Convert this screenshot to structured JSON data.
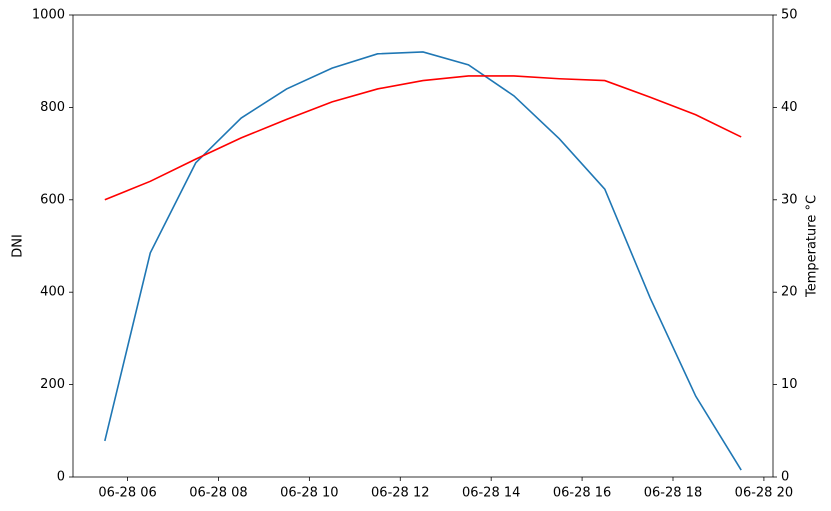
{
  "chart_data": {
    "type": "line",
    "x": [
      5.5,
      6.5,
      7.5,
      8.5,
      9.5,
      10.5,
      11.5,
      12.5,
      13.5,
      14.5,
      15.5,
      16.5,
      17.5,
      18.5,
      19.5
    ],
    "series": [
      {
        "color": "#1f77b4",
        "values": [
          78,
          485,
          680,
          777,
          840,
          885,
          916,
          920,
          892,
          825,
          732,
          623,
          387,
          175,
          15
        ]
      },
      {
        "color": "#ff0000",
        "axis": "y2",
        "values": [
          30.0,
          32.0,
          34.4,
          36.7,
          38.7,
          40.6,
          42.0,
          42.9,
          43.4,
          43.4,
          43.1,
          42.9,
          41.1,
          39.2,
          36.8
        ]
      }
    ],
    "ylabel": "DNI",
    "y2label": "Temperature °C",
    "xlim": [
      4.8,
      20.2
    ],
    "xticks": [
      {
        "value": 6,
        "label": "06-28 06"
      },
      {
        "value": 8,
        "label": "06-28 08"
      },
      {
        "value": 10,
        "label": "06-28 10"
      },
      {
        "value": 12,
        "label": "06-28 12"
      },
      {
        "value": 14,
        "label": "06-28 14"
      },
      {
        "value": 16,
        "label": "06-28 16"
      },
      {
        "value": 18,
        "label": "06-28 18"
      },
      {
        "value": 20,
        "label": "06-28 20"
      }
    ],
    "ylim": [
      0,
      1000
    ],
    "yticks": [
      0,
      200,
      400,
      600,
      800,
      1000
    ],
    "y2lim": [
      0,
      50
    ],
    "y2ticks": [
      0,
      10,
      20,
      30,
      40,
      50
    ],
    "grid": false
  }
}
